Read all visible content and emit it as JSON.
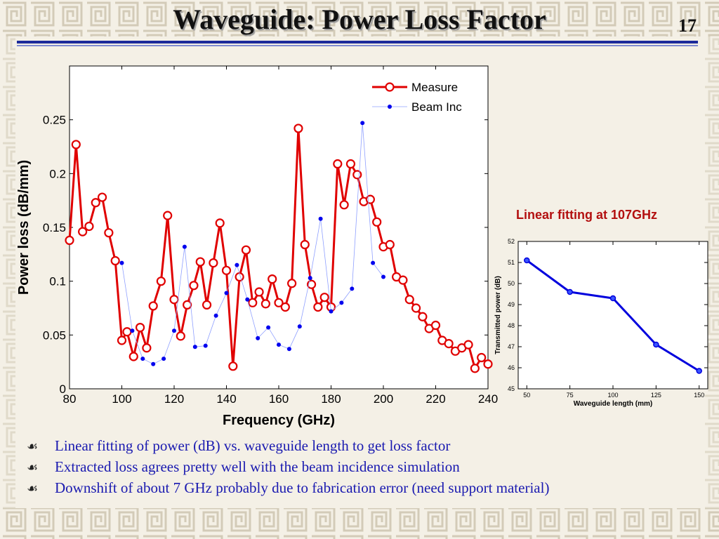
{
  "slide": {
    "title": "Waveguide: Power Loss Factor",
    "number": "17",
    "inset_caption": "Linear fitting at 107GHz"
  },
  "colors": {
    "background": "#f4f0e6",
    "pattern": "#c8bfa8",
    "title_rule": "#1c2a9a",
    "measure": "#e00000",
    "beam": "#0000ee",
    "inset_line": "#0000dd",
    "caption": "#b31010",
    "bullet_text": "#1a1ab0"
  },
  "bullets": [
    {
      "icon": "bullet-icon",
      "glyph": "☙",
      "text": "Linear fitting of power (dB) vs. waveguide length to get loss factor"
    },
    {
      "icon": "bullet-icon",
      "glyph": "☙",
      "text": "Extracted loss agrees pretty well with the beam incidence simulation"
    },
    {
      "icon": "bullet-icon",
      "glyph": "☙",
      "text": "Downshift of about 7 GHz probably due to fabrication error (need support material)"
    }
  ],
  "chart_data": [
    {
      "type": "line",
      "title": "",
      "xlabel": "Frequency (GHz)",
      "ylabel": "Power loss (dB/mm)",
      "xlim": [
        80,
        240
      ],
      "ylim": [
        0,
        0.3
      ],
      "xticks": [
        80,
        100,
        120,
        140,
        160,
        180,
        200,
        220,
        240
      ],
      "yticks": [
        0,
        0.05,
        0.1,
        0.15,
        0.2,
        0.25
      ],
      "ytick_labels": [
        "0",
        "0.05",
        "0.1",
        "0.15",
        "0.2",
        "0.25"
      ],
      "legend": "top-right",
      "grid": false,
      "series": [
        {
          "name": "Measure",
          "color": "#e00000",
          "marker": "circle",
          "x": [
            80,
            82.5,
            85,
            87.5,
            90,
            92.5,
            95,
            97.5,
            100,
            102,
            104.5,
            107,
            109.5,
            112,
            115,
            117.5,
            120,
            122.5,
            125,
            127.5,
            130,
            132.5,
            135,
            137.5,
            140,
            142.5,
            145,
            147.5,
            150,
            152.5,
            155,
            157.5,
            160,
            162.5,
            165,
            167.5,
            170,
            172.5,
            175,
            177.5,
            180,
            182.5,
            185,
            187.5,
            190,
            192.5,
            195,
            197.5,
            200,
            202.5,
            205,
            207.5,
            210,
            212.5,
            215,
            217.5,
            220,
            222.5,
            225,
            227.5,
            230,
            232.5,
            235,
            237.5,
            240
          ],
          "y": [
            0.138,
            0.227,
            0.146,
            0.151,
            0.173,
            0.178,
            0.145,
            0.119,
            0.045,
            0.053,
            0.03,
            0.057,
            0.038,
            0.077,
            0.1,
            0.161,
            0.083,
            0.049,
            0.078,
            0.096,
            0.118,
            0.078,
            0.117,
            0.154,
            0.11,
            0.021,
            0.104,
            0.129,
            0.08,
            0.09,
            0.079,
            0.102,
            0.08,
            0.076,
            0.098,
            0.242,
            0.134,
            0.097,
            0.076,
            0.085,
            0.076,
            0.209,
            0.171,
            0.209,
            0.199,
            0.174,
            0.176,
            0.155,
            0.132,
            0.134,
            0.104,
            0.101,
            0.083,
            0.075,
            0.067,
            0.056,
            0.059,
            0.045,
            0.042,
            0.035,
            0.038,
            0.041,
            0.019,
            0.029,
            0.023
          ]
        },
        {
          "name": "Beam Inc",
          "color": "#0000ee",
          "marker": "dot",
          "x": [
            100,
            104,
            108,
            112,
            116,
            120,
            124,
            128,
            132,
            136,
            140,
            144,
            148,
            152,
            156,
            160,
            164,
            168,
            172,
            176,
            180,
            184,
            188,
            192,
            196,
            200
          ],
          "y": [
            0.117,
            0.054,
            0.028,
            0.023,
            0.028,
            0.054,
            0.132,
            0.039,
            0.04,
            0.068,
            0.089,
            0.115,
            0.083,
            0.047,
            0.057,
            0.041,
            0.037,
            0.058,
            0.103,
            0.158,
            0.072,
            0.08,
            0.093,
            0.247,
            0.117,
            0.104
          ]
        }
      ]
    },
    {
      "type": "line",
      "title": "",
      "xlabel": "Waveguide length (mm)",
      "ylabel": "Transmitted power (dB)",
      "xlim": [
        45,
        155
      ],
      "ylim": [
        45,
        52
      ],
      "xticks": [
        50,
        75,
        100,
        125,
        150
      ],
      "yticks": [
        45,
        46,
        47,
        48,
        49,
        50,
        51,
        52
      ],
      "grid": false,
      "series": [
        {
          "name": "",
          "color": "#0000dd",
          "marker": "circle",
          "x": [
            50,
            75,
            100,
            125,
            150
          ],
          "y": [
            51.1,
            49.6,
            49.3,
            47.1,
            45.85
          ]
        }
      ]
    }
  ]
}
